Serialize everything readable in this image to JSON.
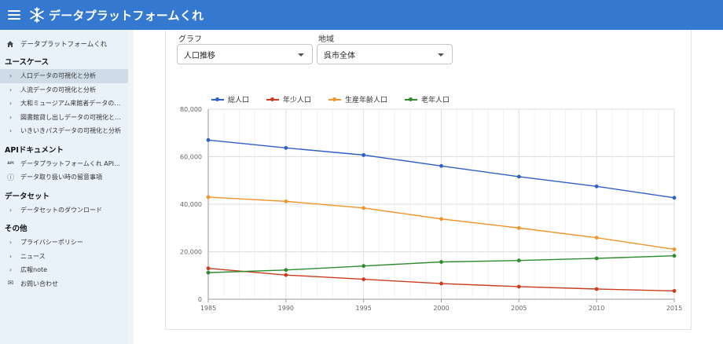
{
  "header": {
    "title": "データプラットフォームくれ"
  },
  "sidebar": {
    "home_label": "データプラットフォームくれ",
    "sections": [
      {
        "title": "ユースケース",
        "items": [
          {
            "label": "人口データの可視化と分析",
            "icon": "chevron-right-icon",
            "active": true
          },
          {
            "label": "人流データの可視化と分析",
            "icon": "chevron-right-icon"
          },
          {
            "label": "大和ミュージアム来館者データの…",
            "icon": "chevron-right-icon"
          },
          {
            "label": "図書館貸し出しデータの可視化と…",
            "icon": "chevron-right-icon"
          },
          {
            "label": "いきいきパスデータの可視化と分析",
            "icon": "chevron-right-icon"
          }
        ]
      },
      {
        "title": "APIドキュメント",
        "items": [
          {
            "label": "データプラットフォームくれ API…",
            "icon": "api-icon"
          },
          {
            "label": "データ取り扱い時の留意事項",
            "icon": "info-icon"
          }
        ]
      },
      {
        "title": "データセット",
        "items": [
          {
            "label": "データセットのダウンロード",
            "icon": "chevron-right-icon"
          }
        ]
      },
      {
        "title": "その他",
        "items": [
          {
            "label": "プライバシーポリシー",
            "icon": "chevron-right-icon"
          },
          {
            "label": "ニュース",
            "icon": "chevron-right-icon"
          },
          {
            "label": "広報note",
            "icon": "chevron-right-icon"
          },
          {
            "label": "お問い合わせ",
            "icon": "mail-icon"
          }
        ]
      }
    ]
  },
  "filters": {
    "graph": {
      "label": "グラフ",
      "value": "人口推移"
    },
    "region": {
      "label": "地域",
      "value": "呉市全体"
    }
  },
  "chart_data": {
    "type": "line",
    "x": [
      1985,
      1990,
      1995,
      2000,
      2005,
      2010,
      2015
    ],
    "ylim": [
      0,
      80000
    ],
    "yticks": [
      "0",
      "20,000",
      "40,000",
      "60,000",
      "80,000"
    ],
    "grid": true,
    "legend_position": "top-left",
    "series": [
      {
        "name": "総人口",
        "color": "#2f5fc8",
        "values": [
          67000,
          63700,
          60700,
          56100,
          51600,
          47500,
          42700
        ]
      },
      {
        "name": "年少人口",
        "color": "#cc3a1f",
        "values": [
          13000,
          10200,
          8400,
          6600,
          5300,
          4300,
          3500
        ]
      },
      {
        "name": "生産年齢人口",
        "color": "#f0942b",
        "values": [
          43000,
          41200,
          38400,
          33800,
          30000,
          25900,
          21000
        ]
      },
      {
        "name": "老年人口",
        "color": "#2e8b2e",
        "values": [
          11200,
          12300,
          14000,
          15700,
          16300,
          17200,
          18300
        ]
      }
    ]
  }
}
